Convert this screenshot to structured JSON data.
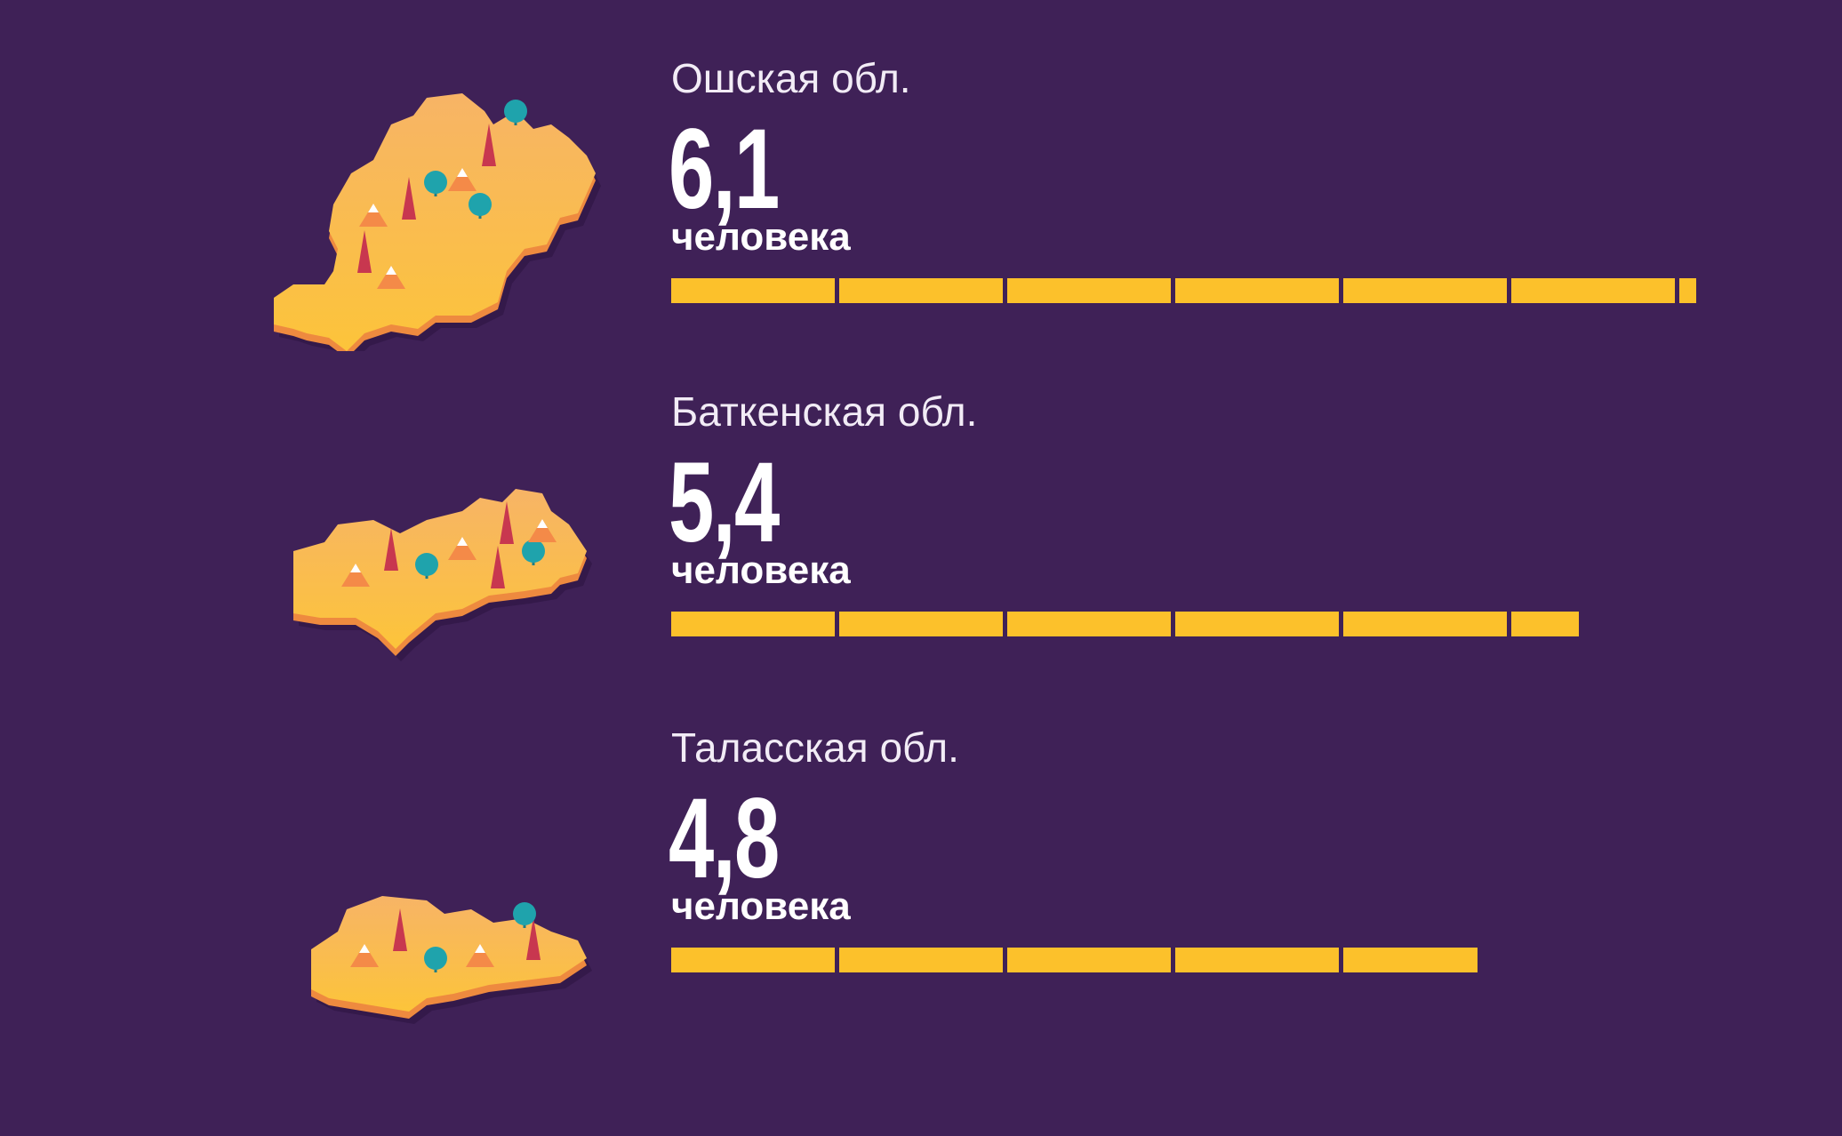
{
  "colors": {
    "background": "#3f2157",
    "bar": "#fcc12b",
    "text": "#ffffff"
  },
  "chart_data": {
    "type": "bar",
    "orientation": "horizontal",
    "segment_unit": 1,
    "categories": [
      "Ошская обл.",
      "Баткенская обл.",
      "Таласская обл."
    ],
    "values": [
      6.1,
      5.4,
      4.8
    ],
    "value_labels": [
      "6,1",
      "5,4",
      "4,8"
    ],
    "unit_label": "человека"
  }
}
